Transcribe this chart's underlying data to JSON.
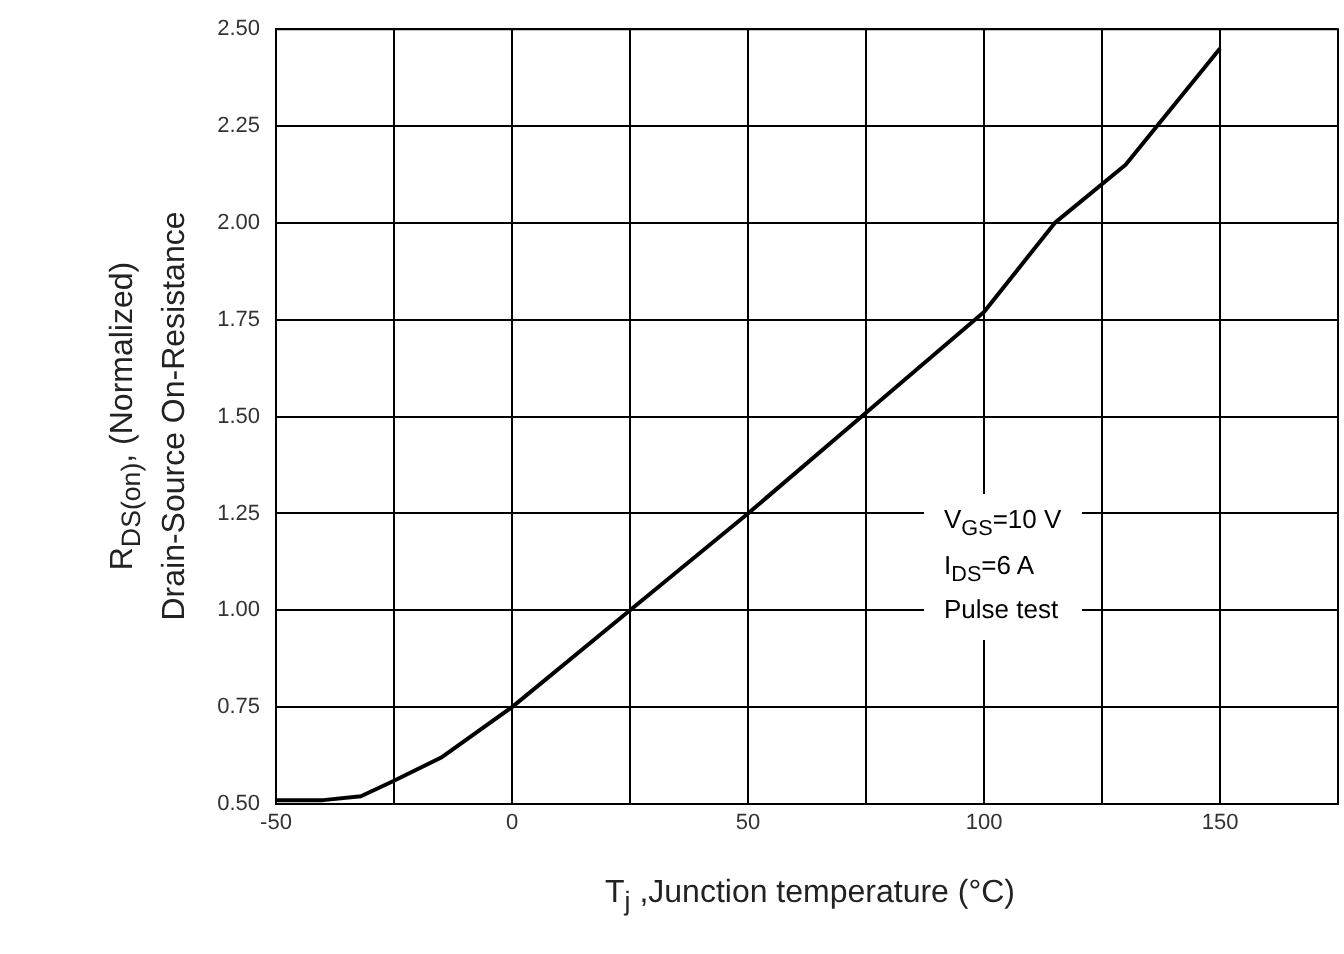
{
  "chart_data": {
    "type": "line",
    "xlabel": "T$_{j}$ ,Junction temperature (°C)",
    "ylabel": "R$_{DS(on)}$, (Normalized)\nDrain-Source On-Resistance",
    "x": [
      -50,
      -40,
      -32,
      -25,
      -15,
      0,
      25,
      50,
      75,
      100,
      115,
      130,
      150
    ],
    "series": [
      {
        "color": "#000000",
        "values": [
          0.51,
          0.51,
          0.52,
          0.56,
          0.62,
          0.75,
          1.0,
          1.25,
          1.51,
          1.77,
          2.0,
          2.15,
          2.45
        ]
      }
    ],
    "xlim": [
      -50,
      175
    ],
    "xticks": [
      -50,
      {
        "value": -25,
        "label": null
      },
      0,
      {
        "value": 25,
        "label": null
      },
      50,
      {
        "value": 75,
        "label": null
      },
      100,
      {
        "value": 125,
        "label": null
      },
      150,
      {
        "value": 175,
        "label": null
      }
    ],
    "ylim": [
      0.5,
      2.5
    ],
    "yticks": [
      {
        "value": 0.5,
        "label": "0.50"
      },
      {
        "value": 0.75,
        "label": "0.75"
      },
      {
        "value": 1,
        "label": "1.00"
      },
      {
        "value": 1.25,
        "label": "1.25"
      },
      {
        "value": 1.5,
        "label": "1.50"
      },
      {
        "value": 1.75,
        "label": "1.75"
      },
      {
        "value": 2,
        "label": "2.00"
      },
      {
        "value": 2.25,
        "label": "2.25"
      },
      {
        "value": 2.5,
        "label": "2.50"
      }
    ],
    "grid": true,
    "legend": false,
    "marker": "none",
    "line_style": "solid",
    "annotations": [
      "V$_{GS}$=10 V\nI$_{DS}$=6 A\nPulse test"
    ]
  }
}
